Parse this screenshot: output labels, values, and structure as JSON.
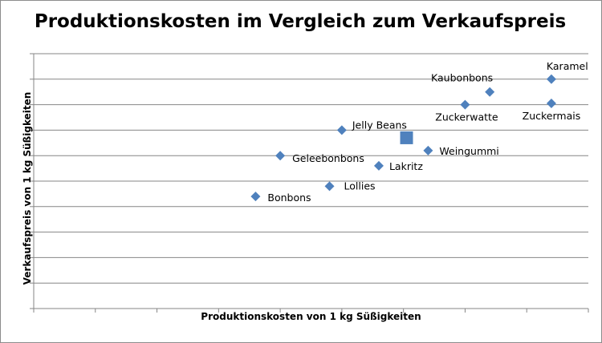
{
  "chart_data": {
    "type": "scatter",
    "title": "Produktionskosten im Vergleich zum Verkaufspreis",
    "xlabel": "Produktionskosten von 1 kg Süßigkeiten",
    "ylabel": "Verkaufspreis von 1 kg Süßigkeiten",
    "xlim": [
      0,
      9
    ],
    "ylim": [
      0,
      10
    ],
    "grid": {
      "horizontal": true,
      "vertical": false
    },
    "legend": "none",
    "colors": {
      "marker": "#4f81bd",
      "highlight": "#4f81bd",
      "grid": "#868686",
      "axis": "#868686"
    },
    "points": [
      {
        "name": "Karamel",
        "x": 8.4,
        "y": 9.0
      },
      {
        "name": "Kaubonbons",
        "x": 7.4,
        "y": 8.5
      },
      {
        "name": "Zuckerwatte",
        "x": 7.0,
        "y": 8.0
      },
      {
        "name": "Zuckermais",
        "x": 8.4,
        "y": 8.05
      },
      {
        "name": "Jelly Beans",
        "x": 5.0,
        "y": 7.0
      },
      {
        "name": "Weingummi",
        "x": 6.4,
        "y": 6.2
      },
      {
        "name": "Geleebonbons",
        "x": 4.0,
        "y": 6.0
      },
      {
        "name": "Lakritz",
        "x": 5.6,
        "y": 5.6
      },
      {
        "name": "Lollies",
        "x": 4.8,
        "y": 4.8
      },
      {
        "name": "Bonbons",
        "x": 3.6,
        "y": 4.4
      }
    ],
    "highlight_point": {
      "x": 6.05,
      "y": 6.7
    }
  }
}
